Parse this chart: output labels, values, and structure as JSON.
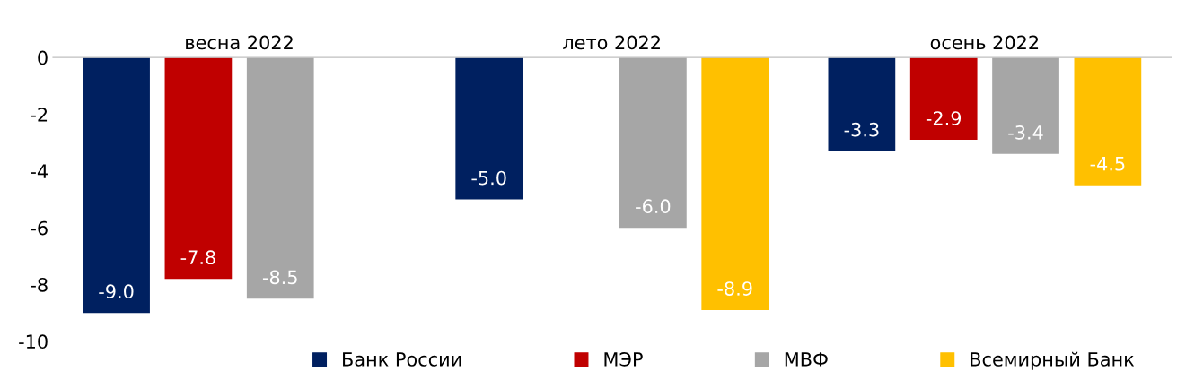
{
  "chart_data": {
    "type": "bar",
    "categories": [
      "весна 2022",
      "лето 2022",
      "осень 2022"
    ],
    "series": [
      {
        "name": "Банк России",
        "color": "#002060",
        "values": [
          -9.0,
          -5.0,
          -3.3
        ],
        "value_labels": [
          "-9.0",
          "-5.0",
          "-3.3"
        ]
      },
      {
        "name": "МЭР",
        "color": "#c00000",
        "values": [
          -7.8,
          null,
          -2.9
        ],
        "value_labels": [
          "-7.8",
          null,
          "-2.9"
        ]
      },
      {
        "name": "МВФ",
        "color": "#a6a6a6",
        "values": [
          -8.5,
          -6.0,
          -3.4
        ],
        "value_labels": [
          "-8.5",
          "-6.0",
          "-3.4"
        ]
      },
      {
        "name": "Всемирный Банк",
        "color": "#ffc000",
        "values": [
          null,
          -8.9,
          -4.5
        ],
        "value_labels": [
          null,
          "-8.9",
          "-4.5"
        ]
      }
    ],
    "ylim": [
      -10,
      0
    ],
    "yticks": [
      -10,
      -8,
      -6,
      -4,
      -2,
      0
    ],
    "grid": false,
    "legend": "bottom"
  }
}
